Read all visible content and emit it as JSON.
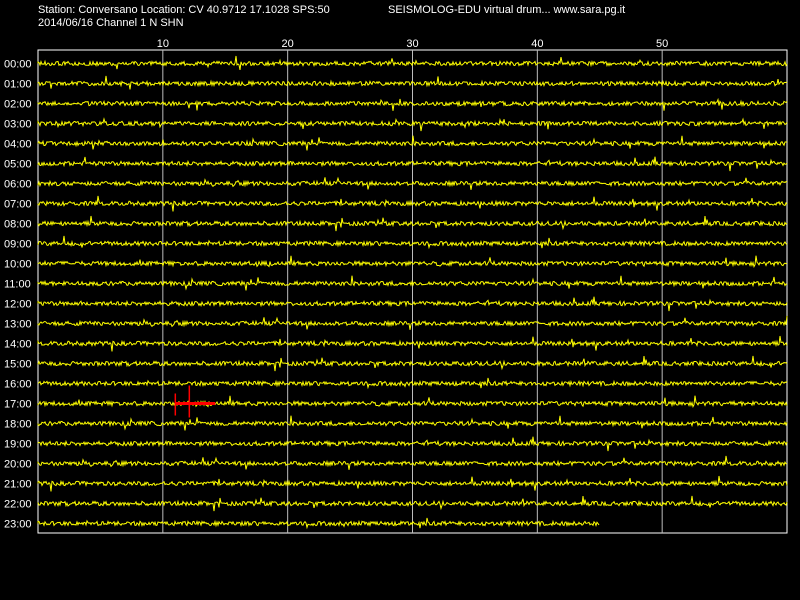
{
  "header": {
    "station_line": "Station: Conversano Location: CV 40.9712 17.1028 SPS:50",
    "brand_line": "SEISMOLOG-EDU virtual drum... www.sara.pg.it",
    "date_line": "2014/06/16  Channel 1 N SHN"
  },
  "colors": {
    "background": "#000000",
    "trace": "#ffff00",
    "event_marker": "#ff0000",
    "grid": "#ffffff"
  },
  "chart_data": {
    "type": "line",
    "x_ticks": [
      "10",
      "20",
      "30",
      "40",
      "50"
    ],
    "x_tick_values": [
      10,
      20,
      30,
      40,
      50
    ],
    "xlim": [
      0,
      60
    ],
    "hours": [
      "00:00",
      "01:00",
      "02:00",
      "03:00",
      "04:00",
      "05:00",
      "06:00",
      "07:00",
      "08:00",
      "09:00",
      "10:00",
      "11:00",
      "12:00",
      "13:00",
      "14:00",
      "15:00",
      "16:00",
      "17:00",
      "18:00",
      "19:00",
      "20:00",
      "21:00",
      "22:00",
      "23:00"
    ],
    "last_minute_recorded": 45,
    "event_marker": {
      "hour": "17:00",
      "start_minute": 11,
      "end_minute": 14.2
    },
    "grid": true
  }
}
